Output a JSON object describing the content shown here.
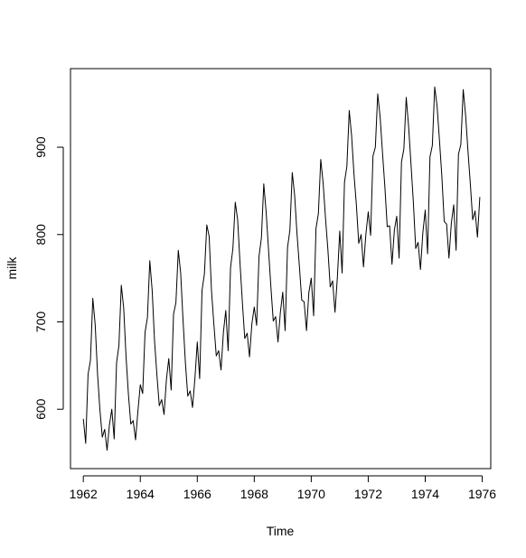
{
  "chart_data": {
    "type": "line",
    "title": "",
    "xlabel": "Time",
    "ylabel": "milk",
    "xlim": [
      1961.55,
      1976.3
    ],
    "ylim": [
      532,
      990
    ],
    "x_ticks": [
      1962,
      1964,
      1966,
      1968,
      1970,
      1972,
      1974,
      1976
    ],
    "x_tick_labels": [
      "1962",
      "1964",
      "1966",
      "1968",
      "1970",
      "1972",
      "1974",
      "1976"
    ],
    "y_ticks": [
      600,
      700,
      800,
      900
    ],
    "y_tick_labels": [
      "600",
      "700",
      "800",
      "900"
    ],
    "grid": false,
    "series": [
      {
        "start": 1962,
        "frequency": 12,
        "values": [
          589,
          561,
          640,
          656,
          727,
          697,
          640,
          599,
          568,
          577,
          553,
          582,
          600,
          566,
          653,
          673,
          742,
          716,
          660,
          617,
          583,
          587,
          565,
          598,
          628,
          618,
          688,
          705,
          770,
          736,
          678,
          639,
          604,
          611,
          594,
          634,
          658,
          622,
          709,
          722,
          782,
          756,
          702,
          653,
          615,
          621,
          602,
          635,
          677,
          635,
          736,
          755,
          811,
          798,
          735,
          697,
          661,
          667,
          645,
          688,
          713,
          667,
          762,
          784,
          837,
          817,
          767,
          722,
          681,
          687,
          660,
          698,
          717,
          696,
          775,
          796,
          858,
          826,
          783,
          740,
          701,
          706,
          677,
          711,
          734,
          690,
          785,
          805,
          871,
          845,
          801,
          764,
          725,
          723,
          690,
          734,
          750,
          707,
          807,
          824,
          886,
          859,
          819,
          783,
          740,
          747,
          711,
          751,
          804,
          756,
          860,
          878,
          942,
          913,
          869,
          834,
          790,
          800,
          763,
          800,
          826,
          799,
          890,
          900,
          961,
          935,
          894,
          855,
          809,
          810,
          766,
          805,
          821,
          773,
          883,
          898,
          957,
          924,
          881,
          837,
          784,
          791,
          760,
          802,
          828,
          778,
          889,
          902,
          969,
          947,
          908,
          867,
          815,
          812,
          773,
          813,
          834,
          782,
          892,
          903,
          966,
          937,
          896,
          858,
          817,
          827,
          797,
          843
        ]
      }
    ]
  }
}
